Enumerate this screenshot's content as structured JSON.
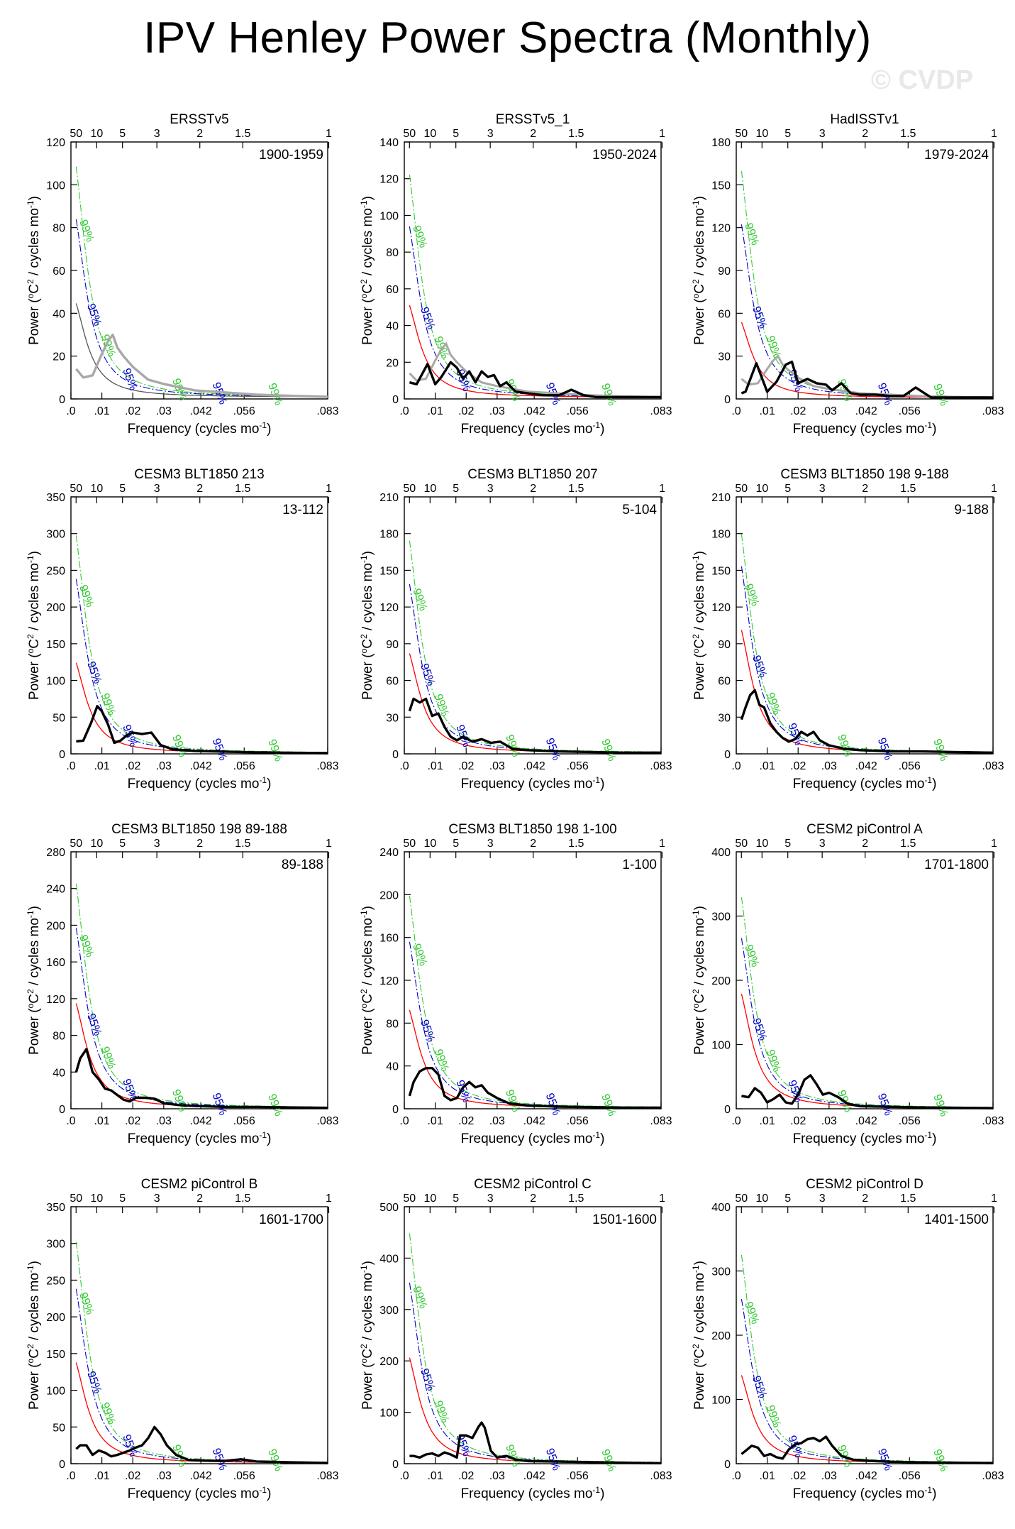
{
  "page": {
    "title": "IPV Henley Power Spectra (Monthly)",
    "watermark": "© CVDP"
  },
  "colors": {
    "spectrum": "#000000",
    "spectrum_obs_ref": "#a8a8a8",
    "red_noise": "#ff0000",
    "ci95": "#0000c8",
    "ci99": "#32c832",
    "obs_ref_markov": "#555555"
  },
  "axis_text": {
    "xlabel": "Frequency (cycles mo",
    "xlabel_sup": "-1",
    "xlabel_end": ")",
    "ylabel_pre": "Power (",
    "ylabel_sup1": "o",
    "ylabel_mid": "C",
    "ylabel_sup2": "2",
    "ylabel_post": " / cycles mo",
    "ylabel_sup3": "-1",
    "ylabel_end": ")",
    "x_tick_labels": [
      ".0",
      ".01",
      ".02",
      ".03",
      ".042",
      ".056",
      ".083"
    ],
    "x_tick_values": [
      0,
      0.01,
      0.02,
      0.03,
      0.042,
      0.056,
      0.083
    ],
    "period_tick_labels": [
      "50",
      "10",
      "5",
      "3",
      "2",
      "1.5",
      "1"
    ],
    "period_tick_values": [
      50,
      10,
      5,
      3,
      2,
      1.5,
      1
    ],
    "ci95_label": "95%",
    "ci99_label": "99%"
  },
  "chart_data": [
    {
      "type": "line",
      "title": "ERSSTv5",
      "period_label": "1900-1959",
      "ylim": [
        0,
        120
      ],
      "yticks": [
        0,
        20,
        40,
        60,
        80,
        100,
        120
      ],
      "xlim": [
        0,
        0.083
      ],
      "observed": true,
      "markov_peak": 48,
      "ci95_peak": 91,
      "ci99_peak": 118,
      "series": [
        {
          "x": [
            0.0017,
            0.004,
            0.007,
            0.01,
            0.012,
            0.0135,
            0.015,
            0.017,
            0.02,
            0.025,
            0.03,
            0.04,
            0.05,
            0.06,
            0.07,
            0.083
          ],
          "y": [
            14,
            10,
            11,
            21,
            27,
            30,
            24,
            20,
            15,
            9,
            7,
            4,
            3,
            2,
            1.5,
            1
          ]
        }
      ]
    },
    {
      "type": "line",
      "title": "ERSSTv5_1",
      "period_label": "1950-2024",
      "ylim": [
        0,
        140
      ],
      "yticks": [
        0,
        20,
        40,
        60,
        80,
        100,
        120,
        140
      ],
      "xlim": [
        0,
        0.083
      ],
      "observed": true,
      "markov_peak": 55,
      "ci95_peak": 102,
      "ci99_peak": 133,
      "series": [
        {
          "x": [
            0.0017,
            0.004,
            0.0075,
            0.01,
            0.012,
            0.015,
            0.017,
            0.019,
            0.021,
            0.023,
            0.025,
            0.027,
            0.029,
            0.031,
            0.033,
            0.036,
            0.04,
            0.045,
            0.05,
            0.054,
            0.058,
            0.062,
            0.068,
            0.075,
            0.083
          ],
          "y": [
            9,
            8,
            19,
            8,
            12,
            20,
            17,
            11,
            15,
            9,
            15,
            12,
            13,
            7,
            9,
            4,
            3,
            2,
            2,
            5,
            2,
            1,
            1,
            1,
            1
          ]
        }
      ]
    },
    {
      "type": "line",
      "title": "HadISSTv1",
      "period_label": "1979-2024",
      "ylim": [
        0,
        180
      ],
      "yticks": [
        0,
        30,
        60,
        90,
        120,
        150,
        180
      ],
      "xlim": [
        0,
        0.083
      ],
      "observed": true,
      "markov_peak": 58,
      "ci95_peak": 133,
      "ci99_peak": 174,
      "series": [
        {
          "x": [
            0.0017,
            0.003,
            0.0065,
            0.01,
            0.013,
            0.016,
            0.018,
            0.02,
            0.023,
            0.026,
            0.029,
            0.031,
            0.034,
            0.037,
            0.04,
            0.045,
            0.05,
            0.054,
            0.058,
            0.063,
            0.07,
            0.083
          ],
          "y": [
            4,
            5,
            25,
            5,
            12,
            24,
            26,
            11,
            14,
            11,
            10,
            6,
            11,
            4,
            3,
            3,
            2,
            2,
            8,
            1,
            1,
            1
          ]
        }
      ]
    },
    {
      "type": "line",
      "title": "CESM3 BLT1850 213",
      "period_label": "13-112",
      "ylim": [
        0,
        350
      ],
      "yticks": [
        0,
        50,
        100,
        150,
        200,
        250,
        300,
        350
      ],
      "xlim": [
        0,
        0.083
      ],
      "observed": false,
      "markov_peak": 135,
      "ci95_peak": 260,
      "ci99_peak": 325,
      "series": [
        {
          "x": [
            0.0017,
            0.004,
            0.0065,
            0.0085,
            0.01,
            0.012,
            0.014,
            0.016,
            0.018,
            0.02,
            0.023,
            0.026,
            0.029,
            0.033,
            0.04,
            0.05,
            0.06,
            0.07,
            0.083
          ],
          "y": [
            17,
            18,
            42,
            65,
            58,
            40,
            15,
            18,
            25,
            29,
            27,
            29,
            12,
            6,
            4,
            3,
            2,
            1.5,
            1
          ]
        }
      ]
    },
    {
      "type": "line",
      "title": "CESM3 BLT1850 207",
      "period_label": "5-104",
      "ylim": [
        0,
        210
      ],
      "yticks": [
        0,
        30,
        60,
        90,
        120,
        150,
        180,
        210
      ],
      "xlim": [
        0,
        0.083
      ],
      "observed": false,
      "markov_peak": 89,
      "ci95_peak": 151,
      "ci99_peak": 190,
      "series": [
        {
          "x": [
            0.0017,
            0.003,
            0.005,
            0.007,
            0.009,
            0.011,
            0.013,
            0.015,
            0.017,
            0.019,
            0.022,
            0.025,
            0.028,
            0.031,
            0.035,
            0.04,
            0.05,
            0.06,
            0.07,
            0.083
          ],
          "y": [
            35,
            45,
            42,
            45,
            31,
            33,
            22,
            14,
            11,
            14,
            10,
            12,
            9,
            10,
            4,
            3,
            2,
            1.5,
            1,
            1
          ]
        }
      ]
    },
    {
      "type": "line",
      "title": "CESM3 BLT1850 198 9-188",
      "period_label": "9-188",
      "ylim": [
        0,
        210
      ],
      "yticks": [
        0,
        30,
        60,
        90,
        120,
        150,
        180,
        210
      ],
      "xlim": [
        0,
        0.083
      ],
      "observed": false,
      "markov_peak": 110,
      "ci95_peak": 167,
      "ci99_peak": 196,
      "series": [
        {
          "x": [
            0.0017,
            0.003,
            0.0045,
            0.006,
            0.0075,
            0.009,
            0.011,
            0.013,
            0.015,
            0.017,
            0.019,
            0.021,
            0.023,
            0.025,
            0.027,
            0.03,
            0.035,
            0.04,
            0.05,
            0.06,
            0.07,
            0.083
          ],
          "y": [
            28,
            38,
            48,
            52,
            40,
            38,
            25,
            18,
            13,
            10,
            12,
            18,
            15,
            18,
            11,
            7,
            4,
            3,
            2,
            2,
            1.5,
            1
          ]
        }
      ]
    },
    {
      "type": "line",
      "title": "CESM3 BLT1850 198 89-188",
      "period_label": "89-188",
      "ylim": [
        0,
        280
      ],
      "yticks": [
        0,
        40,
        80,
        120,
        160,
        200,
        240,
        280
      ],
      "xlim": [
        0,
        0.083
      ],
      "observed": false,
      "markov_peak": 125,
      "ci95_peak": 215,
      "ci99_peak": 268,
      "series": [
        {
          "x": [
            0.0017,
            0.003,
            0.005,
            0.007,
            0.009,
            0.011,
            0.013,
            0.015,
            0.017,
            0.019,
            0.021,
            0.024,
            0.027,
            0.03,
            0.035,
            0.04,
            0.05,
            0.06,
            0.07,
            0.083
          ],
          "y": [
            40,
            55,
            65,
            40,
            32,
            22,
            20,
            15,
            10,
            8,
            12,
            12,
            11,
            6,
            4,
            3,
            2,
            2,
            1.5,
            1
          ]
        }
      ]
    },
    {
      "type": "line",
      "title": "CESM3 BLT1850 198 1-100",
      "period_label": "1-100",
      "ylim": [
        0,
        240
      ],
      "yticks": [
        0,
        40,
        80,
        120,
        160,
        200,
        240
      ],
      "xlim": [
        0,
        0.083
      ],
      "observed": false,
      "markov_peak": 100,
      "ci95_peak": 170,
      "ci99_peak": 217,
      "series": [
        {
          "x": [
            0.0017,
            0.003,
            0.005,
            0.007,
            0.009,
            0.011,
            0.013,
            0.015,
            0.017,
            0.019,
            0.021,
            0.023,
            0.025,
            0.027,
            0.03,
            0.034,
            0.04,
            0.05,
            0.06,
            0.07,
            0.083
          ],
          "y": [
            12,
            25,
            35,
            38,
            38,
            32,
            12,
            8,
            10,
            20,
            25,
            20,
            22,
            15,
            10,
            5,
            3,
            2,
            1.5,
            1,
            1
          ]
        }
      ]
    },
    {
      "type": "line",
      "title": "CESM2 piControl A",
      "period_label": "1701-1800",
      "ylim": [
        0,
        400
      ],
      "yticks": [
        0,
        100,
        200,
        300,
        400
      ],
      "xlim": [
        0,
        0.083
      ],
      "observed": false,
      "markov_peak": 195,
      "ci95_peak": 290,
      "ci99_peak": 360,
      "series": [
        {
          "x": [
            0.0017,
            0.004,
            0.006,
            0.008,
            0.01,
            0.012,
            0.014,
            0.016,
            0.018,
            0.02,
            0.022,
            0.024,
            0.026,
            0.028,
            0.03,
            0.033,
            0.036,
            0.04,
            0.05,
            0.06,
            0.07,
            0.083
          ],
          "y": [
            20,
            18,
            32,
            25,
            10,
            15,
            22,
            10,
            8,
            22,
            45,
            52,
            38,
            22,
            25,
            18,
            8,
            4,
            3,
            2,
            1.5,
            1
          ]
        }
      ]
    },
    {
      "type": "line",
      "title": "CESM2 piControl B",
      "period_label": "1601-1700",
      "ylim": [
        0,
        350
      ],
      "yticks": [
        0,
        50,
        100,
        150,
        200,
        250,
        300,
        350
      ],
      "xlim": [
        0,
        0.083
      ],
      "observed": false,
      "markov_peak": 150,
      "ci95_peak": 260,
      "ci99_peak": 330,
      "series": [
        {
          "x": [
            0.0017,
            0.003,
            0.005,
            0.007,
            0.009,
            0.011,
            0.013,
            0.015,
            0.017,
            0.019,
            0.021,
            0.023,
            0.025,
            0.027,
            0.029,
            0.031,
            0.034,
            0.038,
            0.045,
            0.05,
            0.055,
            0.06,
            0.07,
            0.083
          ],
          "y": [
            20,
            25,
            25,
            12,
            18,
            15,
            10,
            12,
            15,
            18,
            22,
            25,
            35,
            50,
            40,
            25,
            12,
            5,
            4,
            4,
            6,
            3,
            2,
            1
          ]
        }
      ]
    },
    {
      "type": "line",
      "title": "CESM2 piControl C",
      "period_label": "1501-1600",
      "ylim": [
        0,
        500
      ],
      "yticks": [
        0,
        100,
        200,
        300,
        400,
        500
      ],
      "xlim": [
        0,
        0.083
      ],
      "observed": false,
      "markov_peak": 225,
      "ci95_peak": 385,
      "ci99_peak": 490,
      "series": [
        {
          "x": [
            0.0017,
            0.003,
            0.005,
            0.007,
            0.009,
            0.011,
            0.013,
            0.015,
            0.017,
            0.018,
            0.02,
            0.022,
            0.024,
            0.025,
            0.026,
            0.028,
            0.03,
            0.033,
            0.036,
            0.04,
            0.05,
            0.06,
            0.07,
            0.083
          ],
          "y": [
            15,
            15,
            12,
            18,
            20,
            15,
            22,
            18,
            12,
            55,
            55,
            50,
            72,
            80,
            70,
            25,
            12,
            15,
            8,
            5,
            4,
            3,
            2,
            1
          ]
        }
      ]
    },
    {
      "type": "line",
      "title": "CESM2 piControl D",
      "period_label": "1401-1500",
      "ylim": [
        0,
        400
      ],
      "yticks": [
        0,
        100,
        200,
        300,
        400
      ],
      "xlim": [
        0,
        0.083
      ],
      "observed": false,
      "markov_peak": 150,
      "ci95_peak": 280,
      "ci99_peak": 355,
      "series": [
        {
          "x": [
            0.0017,
            0.003,
            0.005,
            0.007,
            0.009,
            0.011,
            0.013,
            0.015,
            0.017,
            0.019,
            0.021,
            0.023,
            0.025,
            0.027,
            0.029,
            0.031,
            0.034,
            0.038,
            0.045,
            0.05,
            0.06,
            0.07,
            0.083
          ],
          "y": [
            15,
            20,
            28,
            25,
            12,
            15,
            10,
            8,
            22,
            30,
            32,
            38,
            40,
            35,
            42,
            28,
            12,
            6,
            4,
            3,
            2,
            1.5,
            1
          ]
        }
      ]
    }
  ]
}
